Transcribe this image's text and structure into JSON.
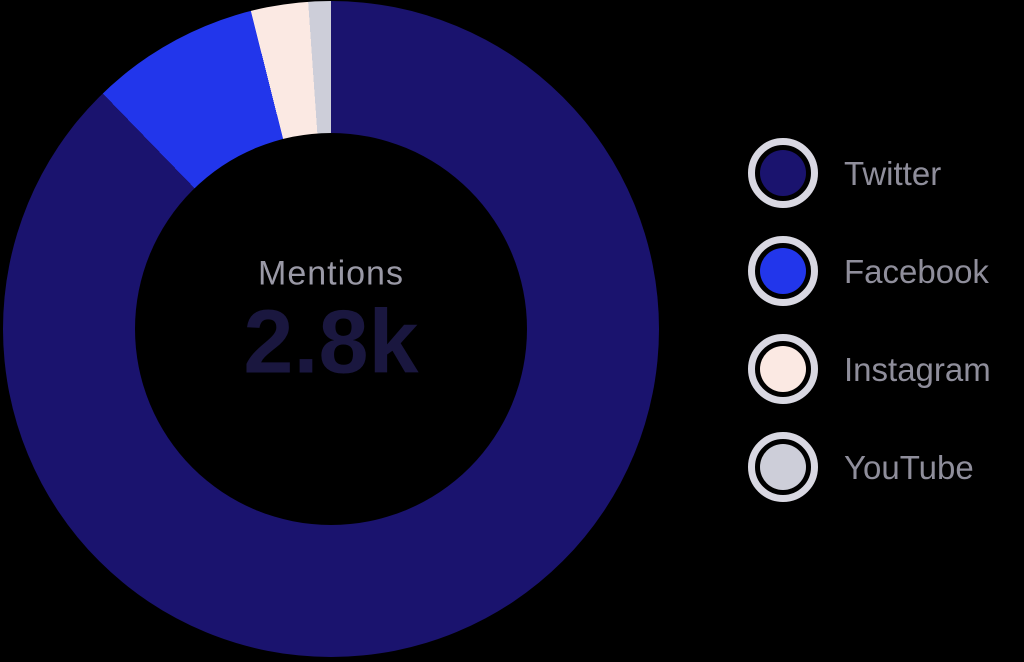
{
  "chart_data": {
    "type": "pie",
    "variant": "donut",
    "title": "",
    "direction": "clockwise",
    "start_angle_deg": 0,
    "legend_position": "right",
    "center": {
      "label": "Mentions",
      "value": "2.8k"
    },
    "segments": [
      {
        "label": "Twitter",
        "percent": 87.75,
        "angle_deg": 315.9,
        "color": "#1a136e"
      },
      {
        "label": "Facebook",
        "percent": 8.32,
        "angle_deg": 30.0,
        "color": "#2236eb"
      },
      {
        "label": "Instagram",
        "percent": 2.82,
        "angle_deg": 10.1,
        "color": "#fbe9e3"
      },
      {
        "label": "YouTube",
        "percent": 1.11,
        "angle_deg": 4.0,
        "color": "#cdced9"
      }
    ],
    "colors": {
      "background": "#000000",
      "legend_ring": "#d9d8e2",
      "legend_text": "#8f8e9b",
      "center_label_text": "#9a99a6",
      "center_value_text": "#1a173f"
    }
  }
}
